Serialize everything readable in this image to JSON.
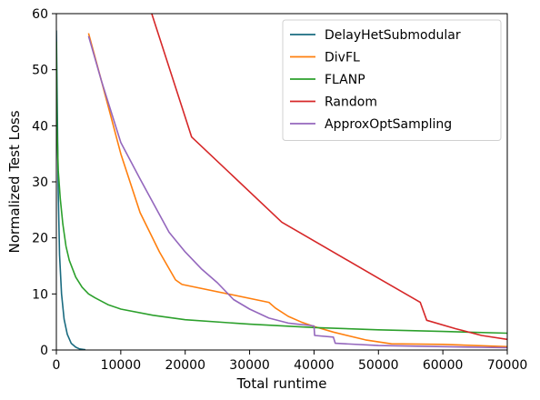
{
  "chart_data": {
    "type": "line",
    "title": "",
    "xlabel": "Total runtime",
    "ylabel": "Normalized Test Loss",
    "xlim": [
      0,
      70000
    ],
    "ylim": [
      0,
      60
    ],
    "xticks": [
      0,
      10000,
      20000,
      30000,
      40000,
      50000,
      60000,
      70000
    ],
    "xtick_labels": [
      "0",
      "10000",
      "20000",
      "30000",
      "40000",
      "50000",
      "60000",
      "70000"
    ],
    "yticks": [
      0,
      10,
      20,
      30,
      40,
      50,
      60
    ],
    "ytick_labels": [
      "0",
      "10",
      "20",
      "30",
      "40",
      "50",
      "60"
    ],
    "grid": false,
    "legend_position": "upper right",
    "series": [
      {
        "name": "DelayHetSubmodular",
        "color": "#1a6b80",
        "x": [
          0,
          150,
          300,
          500,
          800,
          1200,
          1700,
          2300,
          3000,
          3600,
          4200,
          4500
        ],
        "y": [
          57,
          42,
          28,
          17,
          10,
          5.5,
          2.8,
          1.2,
          0.5,
          0.2,
          0.1,
          0.05
        ]
      },
      {
        "name": "DivFL",
        "color": "#ff7f0e",
        "x": [
          5000,
          7000,
          10000,
          13000,
          16000,
          18500,
          19500,
          33000,
          34000,
          36000,
          38000,
          40000,
          43000,
          48000,
          52000,
          60000,
          70000
        ],
        "y": [
          56.5,
          48,
          35,
          24.5,
          17.5,
          12.5,
          11.7,
          8.5,
          7.5,
          6,
          5,
          4.2,
          3.2,
          1.8,
          1.1,
          1.0,
          0.6
        ]
      },
      {
        "name": "FLANP",
        "color": "#2ca02c",
        "x": [
          0,
          100,
          300,
          600,
          1000,
          1500,
          2000,
          3000,
          4000,
          5000,
          6000,
          8000,
          10000,
          15000,
          20000,
          30000,
          40000,
          50000,
          60000,
          70000
        ],
        "y": [
          55,
          40,
          32,
          27,
          22.5,
          18.5,
          16,
          13,
          11.2,
          10,
          9.3,
          8.1,
          7.3,
          6.2,
          5.4,
          4.6,
          4.0,
          3.6,
          3.3,
          3.0
        ]
      },
      {
        "name": "Random",
        "color": "#d62728",
        "x": [
          14800,
          21000,
          35000,
          50000,
          56500,
          57500,
          62000,
          66000,
          70000
        ],
        "y": [
          60,
          38,
          22.8,
          12.8,
          8.5,
          5.3,
          3.8,
          2.6,
          1.9
        ]
      },
      {
        "name": "ApproxOptSampling",
        "color": "#9467bd",
        "x": [
          5000,
          7000,
          10000,
          13000,
          17500,
          20000,
          22500,
          25000,
          27500,
          30000,
          33000,
          36000,
          40000,
          40100,
          43000,
          43300,
          50000,
          60000,
          70000
        ],
        "y": [
          56,
          48,
          37,
          30.5,
          21,
          17.5,
          14.5,
          12,
          9,
          7.3,
          5.7,
          4.8,
          4.3,
          2.6,
          2.3,
          1.2,
          0.8,
          0.6,
          0.4
        ]
      }
    ]
  }
}
